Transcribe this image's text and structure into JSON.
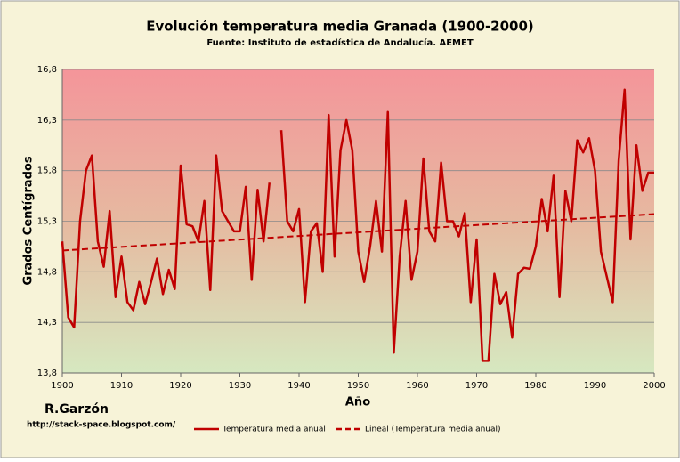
{
  "chart_data": {
    "type": "line",
    "title": "Evolución temperatura media Granada (1900-2000)",
    "subtitle": "Fuente: Instituto de estadística de Andalucía. AEMET",
    "xlabel": "Año",
    "ylabel": "Grados Centígrados",
    "author": "R.Garzón",
    "url": "http://stack-space.blogspot.com/",
    "x": [
      1900,
      1901,
      1902,
      1903,
      1904,
      1905,
      1906,
      1907,
      1908,
      1909,
      1910,
      1911,
      1912,
      1913,
      1914,
      1915,
      1916,
      1917,
      1918,
      1919,
      1920,
      1921,
      1922,
      1923,
      1924,
      1925,
      1926,
      1927,
      1928,
      1929,
      1930,
      1931,
      1932,
      1933,
      1934,
      1935,
      1936,
      1937,
      1938,
      1939,
      1940,
      1941,
      1942,
      1943,
      1944,
      1945,
      1946,
      1947,
      1948,
      1949,
      1950,
      1951,
      1952,
      1953,
      1954,
      1955,
      1956,
      1957,
      1958,
      1959,
      1960,
      1961,
      1962,
      1963,
      1964,
      1965,
      1966,
      1967,
      1968,
      1969,
      1970,
      1971,
      1972,
      1973,
      1974,
      1975,
      1976,
      1977,
      1978,
      1979,
      1980,
      1981,
      1982,
      1983,
      1984,
      1985,
      1986,
      1987,
      1988,
      1989,
      1990,
      1991,
      1992,
      1993,
      1994,
      1995,
      1996,
      1997,
      1998,
      1999,
      2000
    ],
    "series": [
      {
        "name": "Temperatura media anual",
        "color": "#c00000",
        "values": [
          15.1,
          14.35,
          14.25,
          15.3,
          15.8,
          15.95,
          15.1,
          14.85,
          15.4,
          14.55,
          14.95,
          14.5,
          14.42,
          14.7,
          14.48,
          14.7,
          14.93,
          14.58,
          14.82,
          14.63,
          15.85,
          15.27,
          15.25,
          15.1,
          15.5,
          14.62,
          15.95,
          15.4,
          15.3,
          15.2,
          15.2,
          15.64,
          14.72,
          15.61,
          15.1,
          15.68,
          null,
          16.2,
          15.3,
          15.2,
          15.42,
          14.5,
          15.2,
          15.28,
          14.8,
          16.35,
          14.95,
          16.0,
          16.3,
          16.0,
          15.0,
          14.7,
          15.05,
          15.5,
          15.0,
          16.38,
          14.0,
          14.95,
          15.5,
          14.72,
          15.0,
          15.92,
          15.2,
          15.1,
          15.88,
          15.3,
          15.3,
          15.15,
          15.38,
          14.5,
          15.12,
          13.92,
          13.92,
          14.78,
          14.48,
          14.6,
          14.15,
          14.78,
          14.84,
          14.83,
          15.05,
          15.52,
          15.2,
          15.75,
          14.55,
          15.6,
          15.3,
          16.1,
          15.98,
          16.12,
          15.8,
          15.0,
          14.75,
          14.5,
          15.9,
          16.6,
          15.12,
          16.05,
          15.6,
          15.78,
          15.78
        ]
      },
      {
        "name": "Lineal (Temperatura media anual)",
        "color": "#c00000",
        "dashed": true,
        "x": [
          1900,
          2000
        ],
        "values": [
          15.01,
          15.37
        ]
      }
    ],
    "xlim": [
      1900,
      2000
    ],
    "xticks": [
      1900,
      1910,
      1920,
      1930,
      1940,
      1950,
      1960,
      1970,
      1980,
      1990,
      2000
    ],
    "ylim": [
      13.8,
      16.8
    ],
    "yticks": [
      {
        "value": 13.8,
        "label": "13,8"
      },
      {
        "value": 14.3,
        "label": "14,3"
      },
      {
        "value": 14.8,
        "label": "14,8"
      },
      {
        "value": 15.3,
        "label": "15,3"
      },
      {
        "value": 15.8,
        "label": "15,8"
      },
      {
        "value": 16.3,
        "label": "16,3"
      },
      {
        "value": 16.8,
        "label": "16,8"
      }
    ],
    "grid": true,
    "legend": "bottom"
  }
}
